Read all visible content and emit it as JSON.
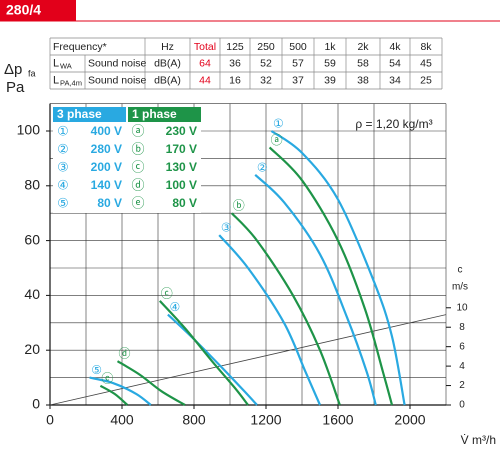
{
  "badge": "280/4",
  "table": {
    "header": [
      "Frequency*",
      "Hz",
      "Total",
      "125",
      "250",
      "500",
      "1k",
      "2k",
      "4k",
      "8k"
    ],
    "rows": [
      {
        "symbol": "L",
        "sub": "WA",
        "label": "Sound noise",
        "unit": "dB(A)",
        "total": 64,
        "bands": [
          36,
          52,
          57,
          59,
          58,
          54,
          45
        ]
      },
      {
        "symbol": "L",
        "sub": "PA,4m",
        "label": "Sound noise",
        "unit": "dB(A)",
        "total": 44,
        "bands": [
          16,
          32,
          37,
          39,
          38,
          34,
          25
        ]
      }
    ]
  },
  "chart_data": {
    "type": "line",
    "y_label": {
      "symbol": "Δp",
      "sub": "fa",
      "unit": "Pa"
    },
    "x_label": "V̇ m³/h",
    "y2_label": "c",
    "y2_unit": "m/s",
    "annotation": "ρ = 1,20 kg/m³",
    "legend_groups": [
      {
        "name": "3 phase",
        "color": "#29a9e1"
      },
      {
        "name": "1 phase",
        "color": "#1e9448"
      }
    ],
    "legend": "top-left",
    "xlim": [
      0,
      2200
    ],
    "ylim": [
      0,
      110
    ],
    "y2lim": [
      0,
      31
    ],
    "xticks": [
      0,
      400,
      800,
      1200,
      1600,
      2000
    ],
    "yticks": [
      0,
      20,
      40,
      60,
      80,
      100
    ],
    "y2ticks": [
      0,
      2,
      4,
      6,
      8,
      10
    ],
    "xgrid": [
      0,
      200,
      400,
      600,
      800,
      1000,
      1200,
      1400,
      1600,
      1800,
      2000,
      2200
    ],
    "ygrid": [
      0,
      10,
      20,
      30,
      40,
      50,
      60,
      70,
      80,
      90,
      100,
      110
    ],
    "series": [
      {
        "name": "400 V",
        "symbol": "①",
        "group": 0,
        "color": "#29a9e1",
        "x": [
          1230,
          1400,
          1600,
          1800,
          1900,
          1970
        ],
        "values": [
          100,
          92,
          75,
          45,
          25,
          0
        ]
      },
      {
        "name": "280 V",
        "symbol": "②",
        "group": 0,
        "color": "#29a9e1",
        "x": [
          1140,
          1300,
          1500,
          1650,
          1760,
          1810
        ],
        "values": [
          84,
          74,
          55,
          32,
          12,
          0
        ]
      },
      {
        "name": "200 V",
        "symbol": "③",
        "group": 0,
        "color": "#29a9e1",
        "x": [
          940,
          1100,
          1300,
          1420,
          1500
        ],
        "values": [
          62,
          50,
          30,
          12,
          0
        ]
      },
      {
        "name": "140 V",
        "symbol": "④",
        "group": 0,
        "color": "#29a9e1",
        "x": [
          655,
          800,
          950,
          1080,
          1150
        ],
        "values": [
          33,
          24,
          14,
          5,
          0
        ]
      },
      {
        "name": "80 V",
        "symbol": "⑤",
        "group": 0,
        "color": "#29a9e1",
        "x": [
          220,
          350,
          480,
          560
        ],
        "values": [
          10,
          8,
          4,
          0
        ]
      },
      {
        "name": "230 V",
        "symbol": "ⓐ",
        "group": 1,
        "color": "#1e9448",
        "x": [
          1220,
          1400,
          1600,
          1750,
          1850,
          1900
        ],
        "values": [
          94,
          82,
          60,
          35,
          12,
          0
        ]
      },
      {
        "name": "170 V",
        "symbol": "ⓑ",
        "group": 1,
        "color": "#1e9448",
        "x": [
          1010,
          1150,
          1350,
          1500,
          1610
        ],
        "values": [
          70,
          60,
          40,
          20,
          0
        ]
      },
      {
        "name": "130 V",
        "symbol": "ⓒ",
        "group": 1,
        "color": "#1e9448",
        "x": [
          610,
          750,
          900,
          1030,
          1100
        ],
        "values": [
          38,
          28,
          16,
          6,
          0
        ]
      },
      {
        "name": "100 V",
        "symbol": "ⓓ",
        "group": 1,
        "color": "#1e9448",
        "x": [
          375,
          500,
          620,
          750
        ],
        "values": [
          16,
          11,
          5,
          0
        ]
      },
      {
        "name": "80 V",
        "symbol": "ⓔ",
        "group": 1,
        "color": "#1e9448",
        "x": [
          280,
          360,
          430
        ],
        "values": [
          7,
          4,
          0
        ]
      }
    ],
    "velocity": {
      "axis": "y2",
      "color": "#444",
      "x": [
        0,
        2200
      ],
      "values": [
        0,
        9.3
      ]
    }
  }
}
